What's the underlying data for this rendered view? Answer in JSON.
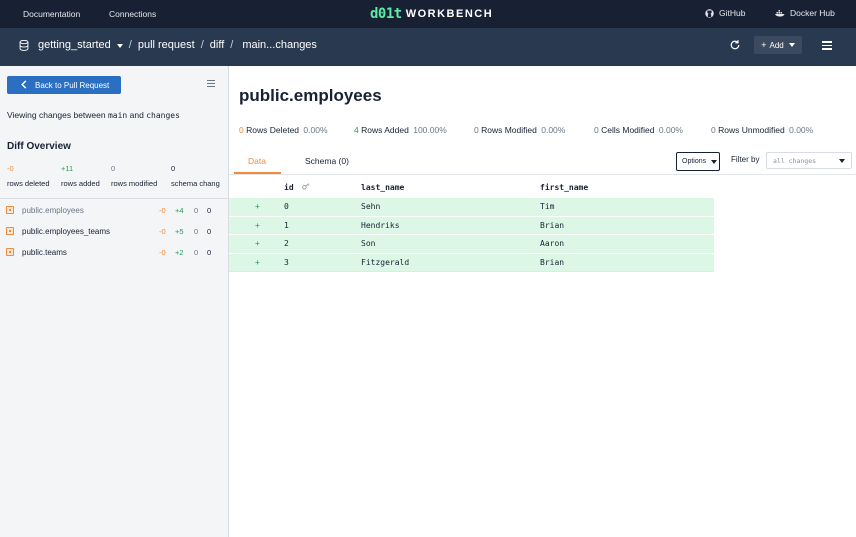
{
  "topbar": {
    "nav": [
      {
        "label": "Documentation"
      },
      {
        "label": "Connections"
      }
    ],
    "logo_mark": "d01t",
    "logo_text": "WORKBENCH",
    "github_label": "GitHub",
    "dockerhub_label": "Docker Hub"
  },
  "breadcrumb": {
    "database": "getting_started",
    "items": [
      "pull request",
      "diff",
      "main...changes"
    ],
    "separator": "/"
  },
  "toolbar": {
    "add_label": "Add"
  },
  "sidebar": {
    "back_label": "Back to Pull Request",
    "viewing_prefix": "Viewing changes between",
    "from_branch": "main",
    "and_word": "and",
    "to_branch": "changes",
    "overview_title": "Diff Overview",
    "stats": [
      {
        "value": "-0",
        "label": "rows deleted"
      },
      {
        "value": "+11",
        "label": "rows added"
      },
      {
        "value": "0",
        "label": "rows modified"
      },
      {
        "value": "0",
        "label": "schema chang"
      }
    ],
    "tables": [
      {
        "name": "public.employees",
        "deleted": "-0",
        "added": "+4",
        "modified": "0",
        "schema": "0"
      },
      {
        "name": "public.employees_teams",
        "deleted": "-0",
        "added": "+5",
        "modified": "0",
        "schema": "0"
      },
      {
        "name": "public.teams",
        "deleted": "-0",
        "added": "+2",
        "modified": "0",
        "schema": "0"
      }
    ]
  },
  "main": {
    "title": "public.employees",
    "summary": [
      {
        "count": "0",
        "label": "Rows Deleted",
        "pct": "0.00%"
      },
      {
        "count": "4",
        "label": "Rows Added",
        "pct": "100.00%"
      },
      {
        "count": "0",
        "label": "Rows Modified",
        "pct": "0.00%"
      },
      {
        "count": "0",
        "label": "Cells Modified",
        "pct": "0.00%"
      },
      {
        "count": "0",
        "label": "Rows Unmodified",
        "pct": "0.00%"
      }
    ],
    "tabs": [
      {
        "label": "Data"
      },
      {
        "label": "Schema (0)"
      }
    ],
    "options_label": "Options",
    "filter_label": "Filter by",
    "filter_value": "all changes",
    "columns": [
      "id",
      "last_name",
      "first_name"
    ],
    "rows": [
      {
        "marker": "+",
        "id": "0",
        "last_name": "Sehn",
        "first_name": "Tim"
      },
      {
        "marker": "+",
        "id": "1",
        "last_name": "Hendriks",
        "first_name": "Brian"
      },
      {
        "marker": "+",
        "id": "2",
        "last_name": "Son",
        "first_name": "Aaron"
      },
      {
        "marker": "+",
        "id": "3",
        "last_name": "Fitzgerald",
        "first_name": "Brian"
      }
    ]
  },
  "colors": {
    "nav_bg": "#182134",
    "subbar_bg": "#29394f",
    "primary_button": "#2a6fc2",
    "added_green": "#2c9a57",
    "added_row_bg": "#ddf7e6",
    "deleted_orange": "#f08a3c"
  }
}
